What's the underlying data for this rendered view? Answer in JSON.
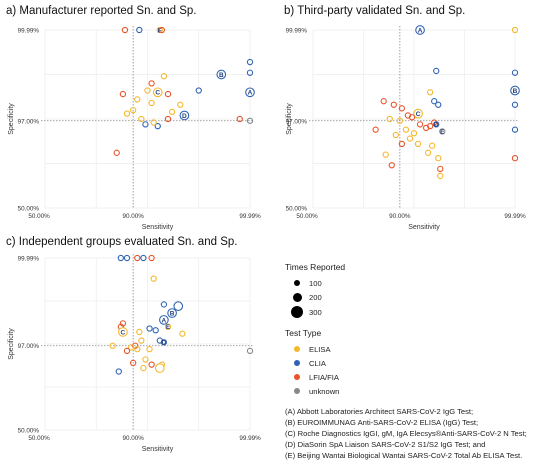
{
  "titles": {
    "a": "a) Manufacturer reported Sn. and Sp.",
    "b": "b) Third-party validated Sn. and Sp.",
    "c": "c) Independent groups evaluated Sn. and Sp."
  },
  "legend": {
    "size_title": "Times Reported",
    "sizes": [
      "100",
      "200",
      "300"
    ],
    "type_title": "Test Type",
    "types": [
      {
        "label": "ELISA",
        "color": "#f5b82e"
      },
      {
        "label": "CLIA",
        "color": "#2f64b5"
      },
      {
        "label": "LFIA/FIA",
        "color": "#e8542a"
      },
      {
        "label": "unknown",
        "color": "#888888"
      }
    ],
    "notes": [
      "(A) Abbott Laboratories Architect SARS-CoV-2 IgG Test;",
      "(B) EUROIMMUNAG Anti-SARS-CoV-2 ELISA (IgG) Test;",
      "(C) Roche Diagnostics IgGI, gM, IgA Elecsys®Anti-SARS-CoV-2 N Test;",
      "(D) DiaSorin SpA Liaison SARS-CoV-2 S1/S2 IgG Test; and",
      "(E) Beijing Wantai Biological Wantai SARS-CoV-2 Total Ab ELISA Test."
    ]
  },
  "chart_data": [
    {
      "type": "scatter",
      "title": "a) Manufacturer reported Sn. and Sp.",
      "xlabel": "Sensitivity",
      "ylabel": "Specificity",
      "xticks": [
        "50.00%",
        "90.00%",
        "99.99%"
      ],
      "yticks": [
        "50.00%",
        "97.00%",
        "99.99%"
      ],
      "reference_lines": {
        "x": "90.00%",
        "y": "97.00%"
      },
      "points": [
        {
          "sx": 0.39,
          "sy": 1.0,
          "type": "LFIA/FIA",
          "size": 1
        },
        {
          "sx": 0.46,
          "sy": 1.0,
          "type": "CLIA",
          "size": 1
        },
        {
          "sx": 0.56,
          "sy": 1.0,
          "type": "ELISA",
          "size": 1,
          "label": "E"
        },
        {
          "sx": 0.57,
          "sy": 1.0,
          "type": "LFIA/FIA",
          "size": 1
        },
        {
          "sx": 0.58,
          "sy": 0.74,
          "type": "ELISA",
          "size": 1
        },
        {
          "sx": 0.52,
          "sy": 0.7,
          "type": "LFIA/FIA",
          "size": 1
        },
        {
          "sx": 0.5,
          "sy": 0.66,
          "type": "ELISA",
          "size": 1
        },
        {
          "sx": 0.6,
          "sy": 0.64,
          "type": "LFIA/FIA",
          "size": 1
        },
        {
          "sx": 0.55,
          "sy": 0.65,
          "type": "ELISA",
          "size": 2,
          "label": "C"
        },
        {
          "sx": 0.38,
          "sy": 0.64,
          "type": "LFIA/FIA",
          "size": 1
        },
        {
          "sx": 0.45,
          "sy": 0.61,
          "type": "ELISA",
          "size": 1
        },
        {
          "sx": 0.52,
          "sy": 0.59,
          "type": "ELISA",
          "size": 1
        },
        {
          "sx": 0.43,
          "sy": 0.55,
          "type": "ELISA",
          "size": 1
        },
        {
          "sx": 0.4,
          "sy": 0.53,
          "type": "ELISA",
          "size": 1
        },
        {
          "sx": 0.66,
          "sy": 0.58,
          "type": "ELISA",
          "size": 1
        },
        {
          "sx": 0.68,
          "sy": 0.52,
          "type": "CLIA",
          "size": 2,
          "label": "D"
        },
        {
          "sx": 0.62,
          "sy": 0.54,
          "type": "ELISA",
          "size": 1
        },
        {
          "sx": 0.47,
          "sy": 0.5,
          "type": "ELISA",
          "size": 1
        },
        {
          "sx": 0.49,
          "sy": 0.47,
          "type": "CLIA",
          "size": 1
        },
        {
          "sx": 0.55,
          "sy": 0.46,
          "type": "CLIA",
          "size": 1
        },
        {
          "sx": 0.6,
          "sy": 0.5,
          "type": "LFIA/FIA",
          "size": 1
        },
        {
          "sx": 0.53,
          "sy": 0.48,
          "type": "ELISA",
          "size": 1
        },
        {
          "sx": 0.75,
          "sy": 0.66,
          "type": "CLIA",
          "size": 1
        },
        {
          "sx": 0.86,
          "sy": 0.75,
          "type": "CLIA",
          "size": 2,
          "label": "B"
        },
        {
          "sx": 1.0,
          "sy": 0.82,
          "type": "CLIA",
          "size": 1
        },
        {
          "sx": 1.0,
          "sy": 0.76,
          "type": "CLIA",
          "size": 1
        },
        {
          "sx": 1.0,
          "sy": 0.65,
          "type": "CLIA",
          "size": 2,
          "label": "A"
        },
        {
          "sx": 0.95,
          "sy": 0.5,
          "type": "LFIA/FIA",
          "size": 1
        },
        {
          "sx": 1.0,
          "sy": 0.49,
          "type": "unknown",
          "size": 1
        },
        {
          "sx": 0.35,
          "sy": 0.31,
          "type": "LFIA/FIA",
          "size": 1
        }
      ]
    },
    {
      "type": "scatter",
      "title": "b) Third-party validated Sn. and Sp.",
      "xlabel": "Sensitivity",
      "ylabel": "Specificity",
      "xticks": [
        "50.00%",
        "90.00%",
        "99.99%"
      ],
      "yticks": [
        "50.00%",
        "97.00%",
        "99.99%"
      ],
      "reference_lines": {
        "x": "90.00%",
        "y": "97.00%"
      },
      "points": [
        {
          "sx": 0.53,
          "sy": 1.0,
          "type": "CLIA",
          "size": 2,
          "label": "A"
        },
        {
          "sx": 1.0,
          "sy": 1.0,
          "type": "ELISA",
          "size": 1
        },
        {
          "sx": 0.61,
          "sy": 0.77,
          "type": "CLIA",
          "size": 1
        },
        {
          "sx": 1.0,
          "sy": 0.76,
          "type": "CLIA",
          "size": 1
        },
        {
          "sx": 1.0,
          "sy": 0.66,
          "type": "CLIA",
          "size": 2,
          "label": "B"
        },
        {
          "sx": 0.58,
          "sy": 0.65,
          "type": "ELISA",
          "size": 1
        },
        {
          "sx": 0.6,
          "sy": 0.6,
          "type": "CLIA",
          "size": 1
        },
        {
          "sx": 0.62,
          "sy": 0.58,
          "type": "CLIA",
          "size": 1
        },
        {
          "sx": 1.0,
          "sy": 0.58,
          "type": "CLIA",
          "size": 1
        },
        {
          "sx": 0.35,
          "sy": 0.6,
          "type": "LFIA/FIA",
          "size": 1
        },
        {
          "sx": 0.4,
          "sy": 0.58,
          "type": "LFIA/FIA",
          "size": 1
        },
        {
          "sx": 0.44,
          "sy": 0.56,
          "type": "LFIA/FIA",
          "size": 1
        },
        {
          "sx": 0.47,
          "sy": 0.52,
          "type": "LFIA/FIA",
          "size": 1
        },
        {
          "sx": 0.52,
          "sy": 0.53,
          "type": "ELISA",
          "size": 2,
          "label": "C"
        },
        {
          "sx": 0.49,
          "sy": 0.51,
          "type": "LFIA/FIA",
          "size": 1
        },
        {
          "sx": 0.38,
          "sy": 0.5,
          "type": "ELISA",
          "size": 1
        },
        {
          "sx": 0.43,
          "sy": 0.49,
          "type": "ELISA",
          "size": 1
        },
        {
          "sx": 0.53,
          "sy": 0.47,
          "type": "LFIA/FIA",
          "size": 1
        },
        {
          "sx": 0.6,
          "sy": 0.48,
          "type": "LFIA/FIA",
          "size": 1
        },
        {
          "sx": 0.61,
          "sy": 0.47,
          "type": "CLIA",
          "size": 1,
          "label": "D"
        },
        {
          "sx": 0.58,
          "sy": 0.46,
          "type": "LFIA/FIA",
          "size": 1
        },
        {
          "sx": 0.56,
          "sy": 0.45,
          "type": "LFIA/FIA",
          "size": 1
        },
        {
          "sx": 0.64,
          "sy": 0.43,
          "type": "unknown",
          "size": 1,
          "label": "E"
        },
        {
          "sx": 0.31,
          "sy": 0.44,
          "type": "LFIA/FIA",
          "size": 1
        },
        {
          "sx": 0.46,
          "sy": 0.44,
          "type": "ELISA",
          "size": 1
        },
        {
          "sx": 0.5,
          "sy": 0.42,
          "type": "ELISA",
          "size": 1
        },
        {
          "sx": 0.41,
          "sy": 0.41,
          "type": "ELISA",
          "size": 1
        },
        {
          "sx": 0.48,
          "sy": 0.39,
          "type": "ELISA",
          "size": 1
        },
        {
          "sx": 0.44,
          "sy": 0.36,
          "type": "LFIA/FIA",
          "size": 1
        },
        {
          "sx": 0.52,
          "sy": 0.36,
          "type": "ELISA",
          "size": 1
        },
        {
          "sx": 0.59,
          "sy": 0.35,
          "type": "ELISA",
          "size": 1
        },
        {
          "sx": 0.57,
          "sy": 0.31,
          "type": "ELISA",
          "size": 1
        },
        {
          "sx": 0.36,
          "sy": 0.3,
          "type": "ELISA",
          "size": 1
        },
        {
          "sx": 0.62,
          "sy": 0.28,
          "type": "ELISA",
          "size": 1
        },
        {
          "sx": 0.39,
          "sy": 0.24,
          "type": "LFIA/FIA",
          "size": 1
        },
        {
          "sx": 0.63,
          "sy": 0.22,
          "type": "LFIA/FIA",
          "size": 1
        },
        {
          "sx": 0.63,
          "sy": 0.18,
          "type": "ELISA",
          "size": 1
        },
        {
          "sx": 1.0,
          "sy": 0.44,
          "type": "CLIA",
          "size": 1
        },
        {
          "sx": 1.0,
          "sy": 0.28,
          "type": "LFIA/FIA",
          "size": 1
        }
      ]
    },
    {
      "type": "scatter",
      "title": "c) Independent groups evaluated Sn. and Sp.",
      "xlabel": "Sensitivity",
      "ylabel": "Specificity",
      "xticks": [
        "50.00%",
        "90.00%",
        "99.99%"
      ],
      "yticks": [
        "50.00%",
        "97.00%",
        "99.99%"
      ],
      "reference_lines": {
        "x": "90.00%",
        "y": "97.00%"
      },
      "points": [
        {
          "sx": 0.37,
          "sy": 1.0,
          "type": "CLIA",
          "size": 1
        },
        {
          "sx": 0.4,
          "sy": 1.0,
          "type": "CLIA",
          "size": 1
        },
        {
          "sx": 0.45,
          "sy": 1.0,
          "type": "LFIA/FIA",
          "size": 1
        },
        {
          "sx": 0.48,
          "sy": 1.0,
          "type": "CLIA",
          "size": 1
        },
        {
          "sx": 0.52,
          "sy": 1.0,
          "type": "LFIA/FIA",
          "size": 1
        },
        {
          "sx": 0.53,
          "sy": 0.88,
          "type": "ELISA",
          "size": 1
        },
        {
          "sx": 0.58,
          "sy": 0.73,
          "type": "CLIA",
          "size": 1
        },
        {
          "sx": 0.65,
          "sy": 0.72,
          "type": "CLIA",
          "size": 2
        },
        {
          "sx": 0.62,
          "sy": 0.68,
          "type": "CLIA",
          "size": 2,
          "label": "B"
        },
        {
          "sx": 0.58,
          "sy": 0.64,
          "type": "CLIA",
          "size": 2,
          "label": "A"
        },
        {
          "sx": 0.6,
          "sy": 0.6,
          "type": "ELISA",
          "size": 1,
          "label": "E"
        },
        {
          "sx": 0.51,
          "sy": 0.59,
          "type": "CLIA",
          "size": 1
        },
        {
          "sx": 0.54,
          "sy": 0.58,
          "type": "CLIA",
          "size": 1
        },
        {
          "sx": 0.38,
          "sy": 0.62,
          "type": "LFIA/FIA",
          "size": 1
        },
        {
          "sx": 0.37,
          "sy": 0.6,
          "type": "LFIA/FIA",
          "size": 1
        },
        {
          "sx": 0.38,
          "sy": 0.57,
          "type": "ELISA",
          "size": 2,
          "label": "C"
        },
        {
          "sx": 0.46,
          "sy": 0.57,
          "type": "ELISA",
          "size": 1
        },
        {
          "sx": 0.56,
          "sy": 0.52,
          "type": "CLIA",
          "size": 1
        },
        {
          "sx": 0.58,
          "sy": 0.51,
          "type": "CLIA",
          "size": 1,
          "label": "D"
        },
        {
          "sx": 0.67,
          "sy": 0.56,
          "type": "ELISA",
          "size": 1
        },
        {
          "sx": 0.47,
          "sy": 0.52,
          "type": "ELISA",
          "size": 1
        },
        {
          "sx": 0.44,
          "sy": 0.49,
          "type": "LFIA/FIA",
          "size": 1
        },
        {
          "sx": 0.33,
          "sy": 0.49,
          "type": "ELISA",
          "size": 1
        },
        {
          "sx": 0.42,
          "sy": 0.48,
          "type": "ELISA",
          "size": 1
        },
        {
          "sx": 0.45,
          "sy": 0.47,
          "type": "ELISA",
          "size": 1
        },
        {
          "sx": 0.51,
          "sy": 0.47,
          "type": "ELISA",
          "size": 1
        },
        {
          "sx": 0.4,
          "sy": 0.46,
          "type": "LFIA/FIA",
          "size": 1
        },
        {
          "sx": 0.43,
          "sy": 0.39,
          "type": "LFIA/FIA",
          "size": 1
        },
        {
          "sx": 0.49,
          "sy": 0.41,
          "type": "ELISA",
          "size": 1
        },
        {
          "sx": 0.52,
          "sy": 0.38,
          "type": "LFIA/FIA",
          "size": 1
        },
        {
          "sx": 0.57,
          "sy": 0.38,
          "type": "ELISA",
          "size": 1
        },
        {
          "sx": 0.56,
          "sy": 0.36,
          "type": "ELISA",
          "size": 2
        },
        {
          "sx": 0.48,
          "sy": 0.36,
          "type": "ELISA",
          "size": 1
        },
        {
          "sx": 0.36,
          "sy": 0.34,
          "type": "CLIA",
          "size": 1
        },
        {
          "sx": 1.0,
          "sy": 0.46,
          "type": "unknown",
          "size": 1
        }
      ]
    }
  ]
}
